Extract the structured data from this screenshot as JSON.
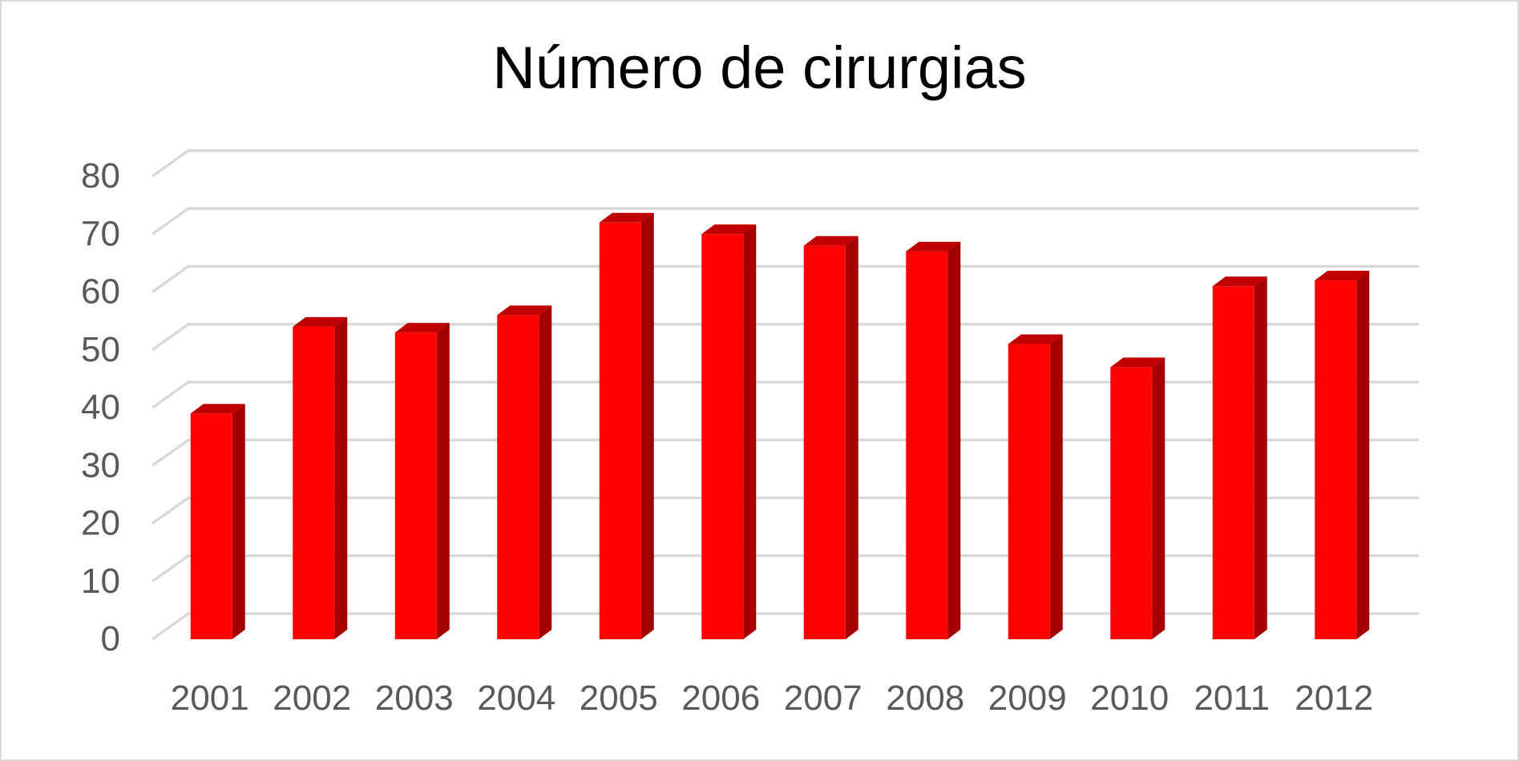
{
  "chart_data": {
    "type": "bar",
    "title": "Número de cirurgias",
    "xlabel": "",
    "ylabel": "",
    "categories": [
      "2001",
      "2002",
      "2003",
      "2004",
      "2005",
      "2006",
      "2007",
      "2008",
      "2009",
      "2010",
      "2011",
      "2012"
    ],
    "values": [
      39,
      54,
      53,
      56,
      72,
      70,
      68,
      67,
      51,
      47,
      61,
      62
    ],
    "ylim": [
      0,
      80
    ],
    "yticks": [
      0,
      10,
      20,
      30,
      40,
      50,
      60,
      70,
      80
    ],
    "grid": true,
    "legend": "none",
    "style": "3d-column",
    "colors": {
      "bar_front": "#ff0000",
      "bar_side": "#a50000",
      "bar_top": "#c00000",
      "gridline": "#d9d9d9",
      "tick_text": "#595959",
      "title_text": "#000000"
    }
  }
}
